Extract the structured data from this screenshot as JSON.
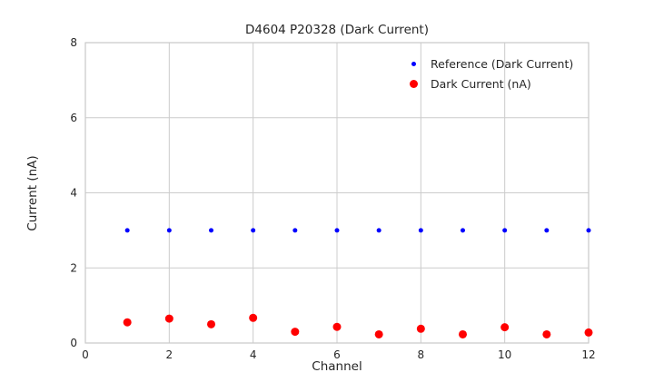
{
  "chart_data": {
    "type": "scatter",
    "title": "D4604 P20328 (Dark Current)",
    "xlabel": "Channel",
    "ylabel": "Current (nA)",
    "xlim": [
      0,
      12
    ],
    "ylim": [
      0,
      8
    ],
    "xticks": [
      0,
      2,
      4,
      6,
      8,
      10,
      12
    ],
    "yticks": [
      0,
      2,
      4,
      6,
      8
    ],
    "grid": true,
    "legend_position": "upper-right",
    "x": [
      1,
      2,
      3,
      4,
      5,
      6,
      7,
      8,
      9,
      10,
      11,
      12
    ],
    "series": [
      {
        "name": "Reference (Dark Current)",
        "color": "#0000ff",
        "marker_radius": 2.5,
        "values": [
          3.0,
          3.0,
          3.0,
          3.0,
          3.0,
          3.0,
          3.0,
          3.0,
          3.0,
          3.0,
          3.0,
          3.0
        ]
      },
      {
        "name": "Dark Current (nA)",
        "color": "#ff0000",
        "marker_radius": 4.5,
        "values": [
          0.55,
          0.65,
          0.5,
          0.67,
          0.3,
          0.43,
          0.23,
          0.38,
          0.23,
          0.42,
          0.23,
          0.28
        ]
      }
    ],
    "colors": {
      "grid": "#cccccc",
      "axis_border": "#c9c9c9",
      "text": "#262626"
    }
  }
}
